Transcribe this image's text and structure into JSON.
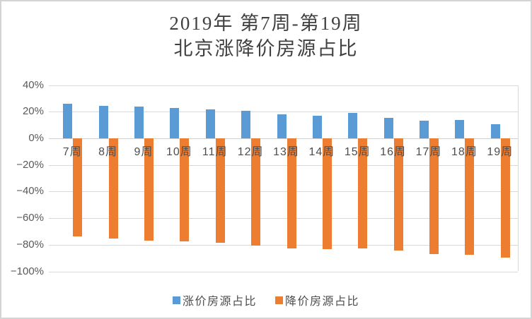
{
  "window": {
    "background": "#ffffff",
    "border_color": "#d4d4d4"
  },
  "title": {
    "line1": "2019年 第7周-第19周",
    "line2": "北京涨降价房源占比",
    "color": "#404040"
  },
  "axis": {
    "tick_text_color": "#595959",
    "gridline_color": "#d9d9d9"
  },
  "chart_data": {
    "type": "bar",
    "title": "2019年 第7周-第19周 北京涨降价房源占比",
    "xlabel": "",
    "ylabel": "",
    "categories": [
      "7周",
      "8周",
      "9周",
      "10周",
      "11周",
      "12周",
      "13周",
      "14周",
      "15周",
      "16周",
      "17周",
      "18周",
      "19周"
    ],
    "series": [
      {
        "name": "涨价房源占比",
        "color": "#5B9BD5",
        "values": [
          26,
          24.5,
          24,
          23,
          21.5,
          20.5,
          18,
          17,
          19,
          15.5,
          13.5,
          14,
          10.5
        ]
      },
      {
        "name": "降价房源占比",
        "color": "#ED7D31",
        "values": [
          -74,
          -75.5,
          -77,
          -77.5,
          -78.5,
          -80.5,
          -83,
          -83.5,
          -83,
          -84.5,
          -87,
          -87.5,
          -89.5
        ]
      }
    ],
    "ylim": [
      -100,
      40
    ],
    "yticks": [
      40,
      20,
      0,
      -20,
      -40,
      -60,
      -80,
      -100
    ],
    "ytick_labels": [
      "40%",
      "20%",
      "0%",
      "−20%",
      "−40%",
      "−60%",
      "−80%",
      "−100%"
    ],
    "grid": true,
    "legend_position": "bottom"
  }
}
